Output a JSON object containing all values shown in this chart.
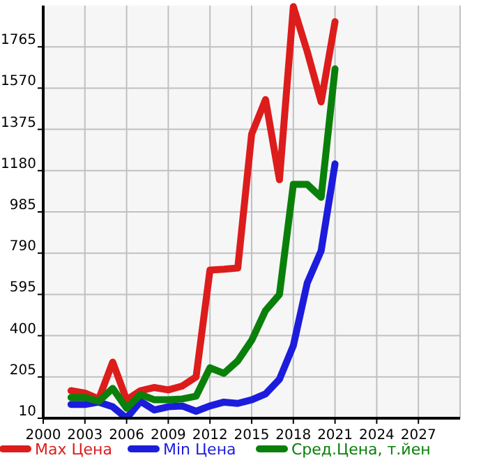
{
  "chart_data": {
    "type": "line",
    "x": [
      2002,
      2003,
      2004,
      2005,
      2006,
      2007,
      2008,
      2009,
      2010,
      2011,
      2012,
      2013,
      2014,
      2015,
      2016,
      2017,
      2018,
      2019,
      2020,
      2021
    ],
    "series": [
      {
        "name": "Max Цена",
        "color": "#dd1c1c",
        "values": [
          140,
          129,
          101,
          275,
          97,
          140,
          155,
          144,
          162,
          205,
          710,
          714,
          720,
          1353,
          1516,
          1137,
          1955,
          1743,
          1505,
          1884
        ]
      },
      {
        "name": "Min Цена",
        "color": "#1c1cdd",
        "values": [
          75,
          75,
          86,
          64,
          10,
          90,
          49,
          64,
          68,
          43,
          68,
          86,
          80,
          97,
          125,
          194,
          353,
          649,
          801,
          1212
        ]
      },
      {
        "name": "Сред.Цена, т.йен",
        "color": "#0a800a",
        "values": [
          108,
          108,
          90,
          151,
          57,
          122,
          97,
          97,
          101,
          114,
          248,
          222,
          281,
          378,
          519,
          595,
          1115,
          1115,
          1054,
          1661
        ]
      }
    ],
    "xlim": [
      2000,
      2030
    ],
    "xticks": [
      2000,
      2003,
      2006,
      2009,
      2012,
      2015,
      2018,
      2021,
      2024,
      2027
    ],
    "ylim": [
      10,
      1960
    ],
    "yticks": [
      10,
      205,
      400,
      595,
      790,
      985,
      1180,
      1375,
      1570,
      1765
    ],
    "grid": true,
    "legend": "bottom",
    "marker": "none",
    "line_style": "solid"
  }
}
